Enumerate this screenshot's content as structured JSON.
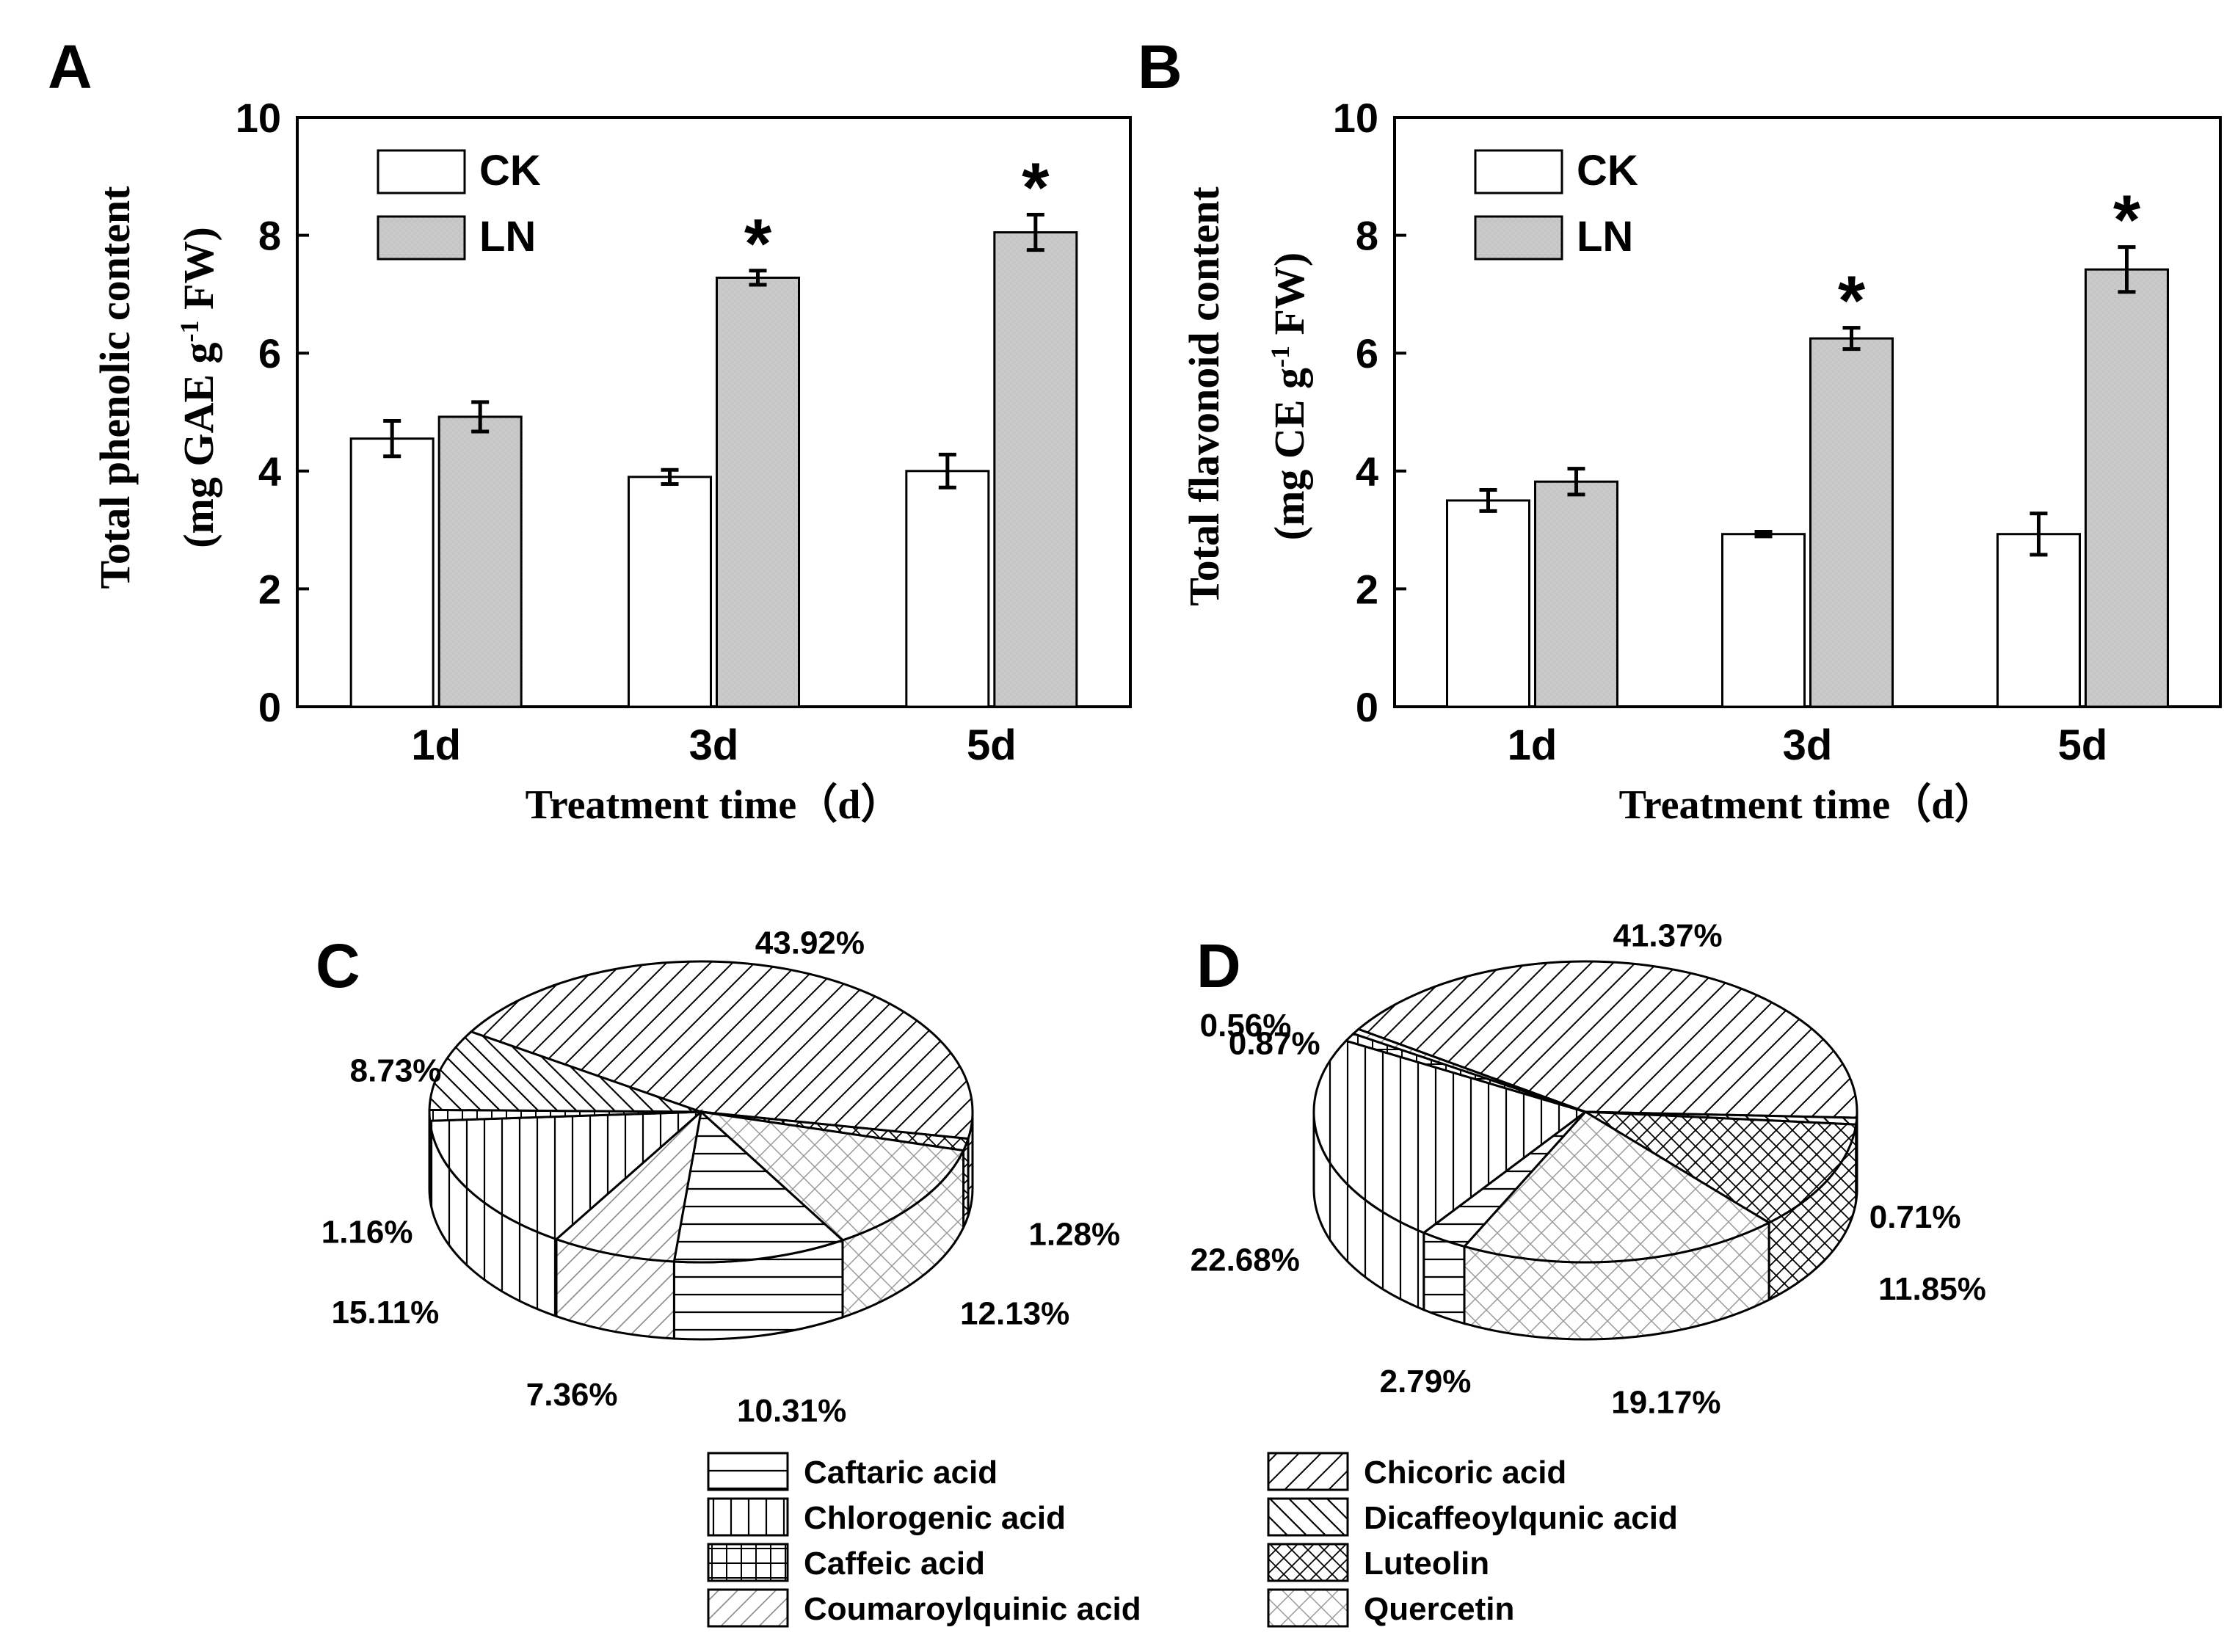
{
  "chart_data": [
    {
      "panel": "A",
      "type": "bar",
      "title": "",
      "xlabel": "Treatment time（d）",
      "ylabel_line1": "Total phenolic content",
      "ylabel_line2": "(mg GAE g",
      "ylabel_sup": "-1",
      "ylabel_line2_end": " FW)",
      "ylim": [
        0,
        10
      ],
      "yticks": [
        0,
        2,
        4,
        6,
        8,
        10
      ],
      "categories": [
        "1d",
        "3d",
        "5d"
      ],
      "series": [
        {
          "name": "CK",
          "fill": "#ffffff",
          "values": [
            4.55,
            3.9,
            4.0
          ],
          "errors": [
            0.3,
            0.12,
            0.28
          ],
          "significant": [
            false,
            false,
            false
          ]
        },
        {
          "name": "LN",
          "fill": "#c8c8c8",
          "values": [
            4.92,
            7.28,
            8.05
          ],
          "errors": [
            0.25,
            0.12,
            0.3
          ],
          "significant": [
            false,
            true,
            true
          ]
        }
      ],
      "significance_mark": "*"
    },
    {
      "panel": "B",
      "type": "bar",
      "title": "",
      "xlabel": "Treatment time（d）",
      "ylabel_line1": "Total flavonoid content",
      "ylabel_line2": "(mg CE g",
      "ylabel_sup": "-1",
      "ylabel_line2_end": " FW)",
      "ylim": [
        0,
        10
      ],
      "yticks": [
        0,
        2,
        4,
        6,
        8,
        10
      ],
      "categories": [
        "1d",
        "3d",
        "5d"
      ],
      "series": [
        {
          "name": "CK",
          "fill": "#ffffff",
          "values": [
            3.5,
            2.93,
            2.93
          ],
          "errors": [
            0.18,
            0.04,
            0.35
          ],
          "significant": [
            false,
            false,
            false
          ]
        },
        {
          "name": "LN",
          "fill": "#c8c8c8",
          "values": [
            3.82,
            6.25,
            7.42
          ],
          "errors": [
            0.22,
            0.18,
            0.38
          ],
          "significant": [
            false,
            true,
            true
          ]
        }
      ],
      "significance_mark": "*"
    },
    {
      "panel": "C",
      "type": "pie",
      "slices": [
        {
          "name": "Chicoric acid",
          "value": 43.92,
          "label": "43.92%"
        },
        {
          "name": "Luteolin",
          "value": 1.28,
          "label": "1.28%"
        },
        {
          "name": "Quercetin",
          "value": 12.13,
          "label": "12.13%"
        },
        {
          "name": "Caftaric acid",
          "value": 10.31,
          "label": "10.31%"
        },
        {
          "name": "Coumaroylquinic acid",
          "value": 7.36,
          "label": "7.36%"
        },
        {
          "name": "Chlorogenic acid",
          "value": 15.11,
          "label": "15.11%"
        },
        {
          "name": "Caffeic acid",
          "value": 1.16,
          "label": "1.16%"
        },
        {
          "name": "Dicaffeoylqunic acid",
          "value": 8.73,
          "label": "8.73%"
        }
      ]
    },
    {
      "panel": "D",
      "type": "pie",
      "slices": [
        {
          "name": "Chicoric acid",
          "value": 41.37,
          "label": "41.37%"
        },
        {
          "name": "Dicaffeoylqunic acid",
          "value": 0.71,
          "label": "0.71%"
        },
        {
          "name": "Luteolin",
          "value": 11.85,
          "label": "11.85%"
        },
        {
          "name": "Quercetin",
          "value": 19.17,
          "label": "19.17%"
        },
        {
          "name": "Caftaric acid",
          "value": 2.79,
          "label": "2.79%"
        },
        {
          "name": "Chlorogenic acid",
          "value": 22.68,
          "label": "22.68%"
        },
        {
          "name": "Caffeic acid",
          "value": 0.87,
          "label": "0.87%"
        },
        {
          "name": "Coumaroylquinic acid",
          "value": 0.56,
          "label": "0.56%"
        }
      ]
    }
  ],
  "pie_legend": [
    {
      "name": "Caftaric acid",
      "pattern": "hlines"
    },
    {
      "name": "Chlorogenic acid",
      "pattern": "vlines"
    },
    {
      "name": "Caffeic acid",
      "pattern": "grid"
    },
    {
      "name": "Coumaroylquinic acid",
      "pattern": "diag-light"
    },
    {
      "name": "Chicoric acid",
      "pattern": "diag"
    },
    {
      "name": "Dicaffeoylqunic acid",
      "pattern": "backdiag"
    },
    {
      "name": "Luteolin",
      "pattern": "crosshatch"
    },
    {
      "name": "Quercetin",
      "pattern": "crosshatch-light"
    }
  ],
  "colors": {
    "ck_bar": "#ffffff",
    "ln_bar": "#c8c8c8",
    "stroke": "#000000"
  }
}
